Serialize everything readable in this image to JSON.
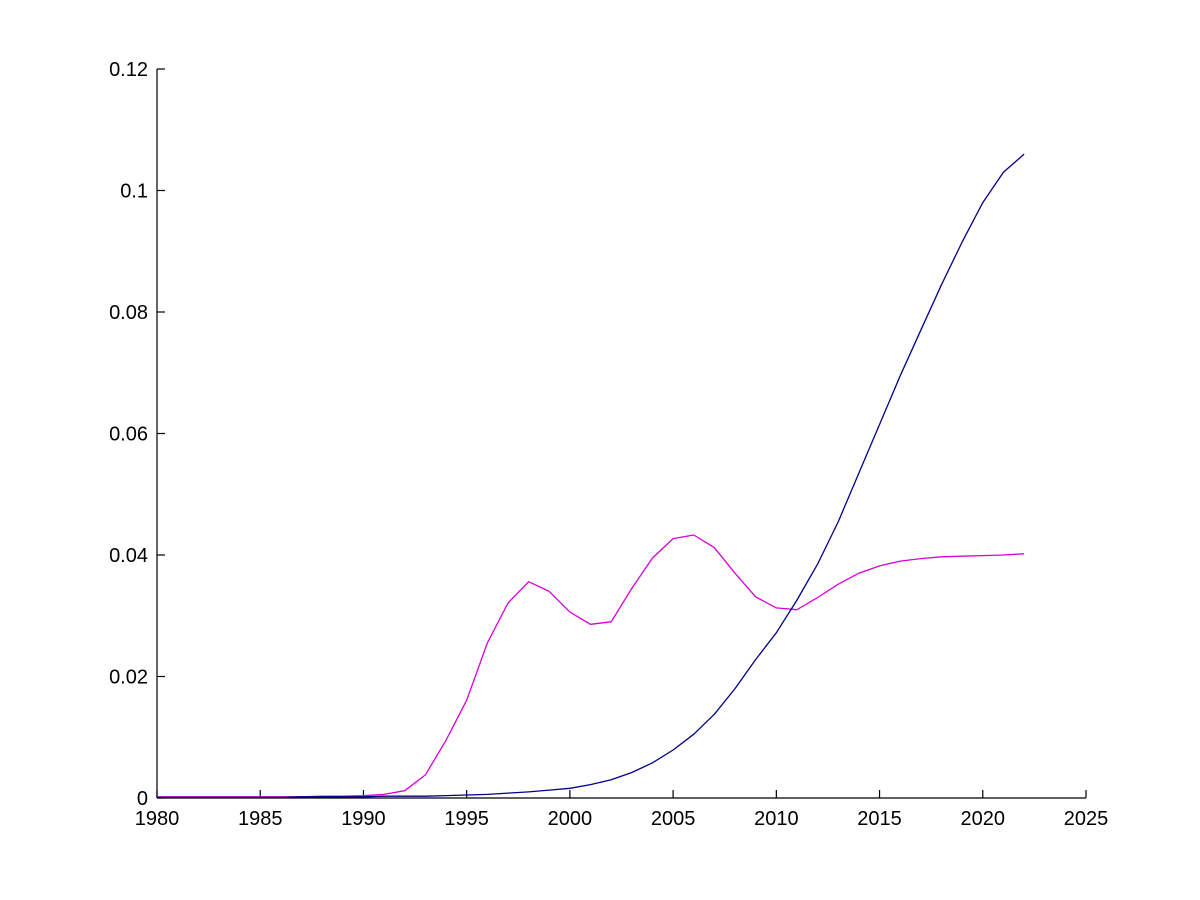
{
  "figure": {
    "background": "#ffffff"
  },
  "chart_data": {
    "type": "line",
    "title": "",
    "xlabel": "",
    "ylabel": "",
    "xlim": [
      1980,
      2025
    ],
    "ylim": [
      0,
      0.12
    ],
    "grid": false,
    "legend": "none",
    "box": false,
    "axis_color": "#000000",
    "tick_direction": "in",
    "x_ticks": [
      1980,
      1985,
      1990,
      1995,
      2000,
      2005,
      2010,
      2015,
      2020,
      2025
    ],
    "x_tick_labels": [
      "1980",
      "1985",
      "1990",
      "1995",
      "2000",
      "2005",
      "2010",
      "2015",
      "2020",
      "2025"
    ],
    "y_ticks": [
      0,
      0.02,
      0.04,
      0.06,
      0.08,
      0.1,
      0.12
    ],
    "y_tick_labels": [
      "0",
      "0.02",
      "0.04",
      "0.06",
      "0.08",
      "0.1",
      "0.12"
    ],
    "x": [
      1980,
      1981,
      1982,
      1983,
      1984,
      1985,
      1986,
      1987,
      1988,
      1989,
      1990,
      1991,
      1992,
      1993,
      1994,
      1995,
      1996,
      1997,
      1998,
      1999,
      2000,
      2001,
      2002,
      2003,
      2004,
      2005,
      2006,
      2007,
      2008,
      2009,
      2010,
      2011,
      2012,
      2013,
      2014,
      2015,
      2016,
      2017,
      2018,
      2019,
      2020,
      2021,
      2022
    ],
    "series": [
      {
        "name": "magenta",
        "color": "#D800D8",
        "values": [
          0.0002,
          0.0002,
          0.0002,
          0.0002,
          0.0002,
          0.0002,
          0.0002,
          0.0002,
          0.0003,
          0.0003,
          0.0004,
          0.0006,
          0.0012,
          0.0038,
          0.0095,
          0.0161,
          0.0255,
          0.0321,
          0.0356,
          0.034,
          0.0306,
          0.0286,
          0.029,
          0.0345,
          0.0395,
          0.0427,
          0.0433,
          0.0412,
          0.037,
          0.0331,
          0.0313,
          0.031,
          0.033,
          0.0352,
          0.037,
          0.0382,
          0.039,
          0.0394,
          0.0397,
          0.0398,
          0.0399,
          0.04,
          0.0402
        ]
      },
      {
        "name": "blue",
        "color": "#00008B",
        "values": [
          0.0001,
          0.0001,
          0.0001,
          0.0001,
          0.0001,
          0.0001,
          0.0001,
          0.0002,
          0.0002,
          0.0002,
          0.0002,
          0.0003,
          0.0003,
          0.0003,
          0.0004,
          0.0005,
          0.0006,
          0.0008,
          0.001,
          0.0013,
          0.0016,
          0.0022,
          0.003,
          0.0042,
          0.0058,
          0.0079,
          0.0105,
          0.0138,
          0.018,
          0.0228,
          0.0272,
          0.0326,
          0.0385,
          0.0455,
          0.0535,
          0.0615,
          0.0695,
          0.077,
          0.0845,
          0.0915,
          0.098,
          0.103,
          0.106
        ]
      }
    ]
  }
}
